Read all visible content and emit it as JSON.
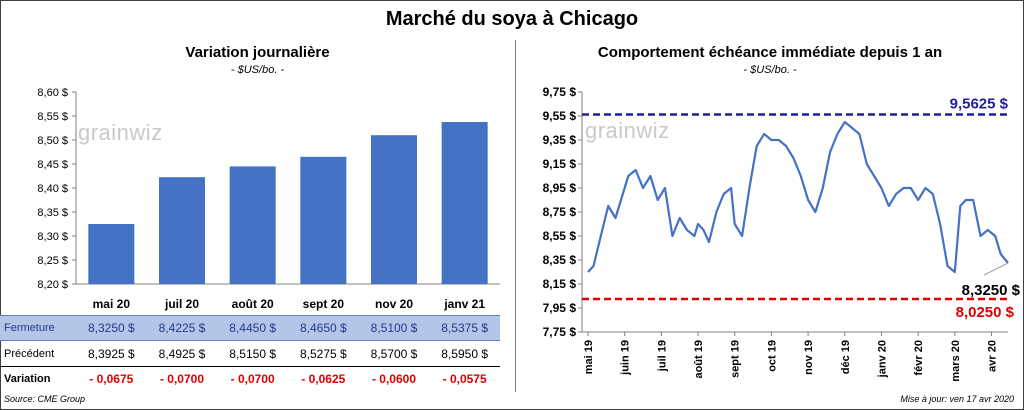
{
  "title": "Marché du soya à Chicago",
  "left_panel": {
    "title": "Variation journalière",
    "unit": "- $US/bo. -",
    "watermark": "grainwiz"
  },
  "right_panel": {
    "title": "Comportement échéance immédiate depuis 1 an",
    "unit": "- $US/bo. -",
    "watermark": "grainwiz",
    "max_label": "9,5625 $",
    "min_label": "8,0250 $",
    "last_label": "8,3250 $"
  },
  "table": {
    "rows": [
      {
        "label": "Fermeture",
        "values": [
          "8,3250 $",
          "8,4225 $",
          "8,4450 $",
          "8,4650 $",
          "8,5100 $",
          "8,5375 $"
        ]
      },
      {
        "label": "Précédent",
        "values": [
          "8,3925 $",
          "8,4925 $",
          "8,5150 $",
          "8,5275 $",
          "8,5700 $",
          "8,5950 $"
        ]
      },
      {
        "label": "Variation",
        "values": [
          "- 0,0675",
          "- 0,0700",
          "- 0,0700",
          "- 0,0625",
          "- 0,0600",
          "- 0,0575"
        ]
      }
    ]
  },
  "footer": {
    "source": "Source: CME Group",
    "updated": "Mise à jour: ven 17 avr 2020"
  },
  "colors": {
    "bar": "#4472c4",
    "line": "#4472c4",
    "max_line": "#1f1f9f",
    "min_line": "#e00000",
    "negative": "#e00000",
    "fermeture_bg": "#b4c6e7"
  },
  "chart_data": [
    {
      "type": "bar",
      "title": "Variation journalière",
      "categories": [
        "mai 20",
        "juil 20",
        "août 20",
        "sept 20",
        "nov 20",
        "janv 21"
      ],
      "values": [
        8.325,
        8.4225,
        8.445,
        8.465,
        8.51,
        8.5375
      ],
      "ylim": [
        8.2,
        8.6
      ],
      "yticks": [
        "8,20 $",
        "8,25 $",
        "8,30 $",
        "8,35 $",
        "8,40 $",
        "8,45 $",
        "8,50 $",
        "8,55 $",
        "8,60 $"
      ],
      "grid": false
    },
    {
      "type": "line",
      "title": "Comportement échéance immédiate depuis 1 an",
      "ylim": [
        7.75,
        9.75
      ],
      "yticks": [
        "7,75 $",
        "7,95 $",
        "8,15 $",
        "8,35 $",
        "8,55 $",
        "8,75 $",
        "8,95 $",
        "9,15 $",
        "9,35 $",
        "9,55 $",
        "9,75 $"
      ],
      "xticks": [
        "mai 19",
        "juin 19",
        "juil 19",
        "août 19",
        "sept 19",
        "oct 19",
        "nov 19",
        "déc 19",
        "janv 20",
        "févr 20",
        "mars 20",
        "avr 20"
      ],
      "x_month_index": [
        0,
        0.15,
        0.35,
        0.55,
        0.75,
        0.95,
        1.1,
        1.3,
        1.5,
        1.7,
        1.9,
        2.1,
        2.3,
        2.5,
        2.7,
        2.9,
        3.0,
        3.15,
        3.3,
        3.5,
        3.7,
        3.9,
        4.0,
        4.2,
        4.4,
        4.6,
        4.8,
        5.0,
        5.2,
        5.4,
        5.6,
        5.8,
        6.0,
        6.2,
        6.4,
        6.6,
        6.8,
        7.0,
        7.2,
        7.4,
        7.6,
        7.8,
        8.0,
        8.2,
        8.4,
        8.6,
        8.8,
        9.0,
        9.2,
        9.4,
        9.6,
        9.8,
        10.0,
        10.15,
        10.3,
        10.5,
        10.7,
        10.9,
        11.1,
        11.25,
        11.45
      ],
      "values": [
        8.25,
        8.3,
        8.55,
        8.8,
        8.7,
        8.9,
        9.05,
        9.1,
        8.95,
        9.05,
        8.85,
        8.95,
        8.55,
        8.7,
        8.6,
        8.55,
        8.65,
        8.6,
        8.5,
        8.75,
        8.9,
        8.95,
        8.65,
        8.55,
        8.95,
        9.3,
        9.4,
        9.35,
        9.35,
        9.3,
        9.2,
        9.05,
        8.85,
        8.75,
        8.95,
        9.25,
        9.4,
        9.5,
        9.45,
        9.4,
        9.15,
        9.05,
        8.95,
        8.8,
        8.9,
        8.95,
        8.95,
        8.85,
        8.95,
        8.9,
        8.65,
        8.3,
        8.25,
        8.8,
        8.85,
        8.85,
        8.55,
        8.6,
        8.55,
        8.4,
        8.325
      ],
      "reference_lines": [
        {
          "label": "9,5625 $",
          "value": 9.5625
        },
        {
          "label": "8,0250 $",
          "value": 8.025
        }
      ],
      "grid": false
    }
  ]
}
